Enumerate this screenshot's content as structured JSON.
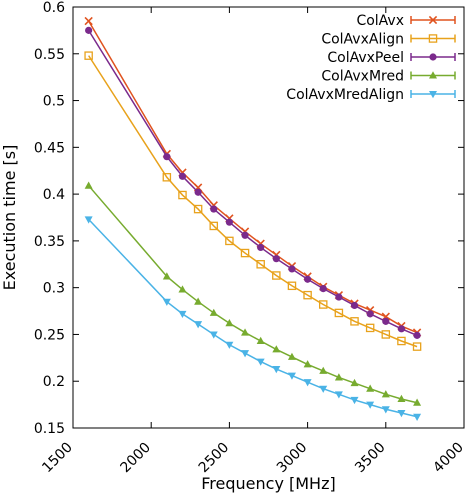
{
  "chart_data": {
    "type": "line",
    "title": "",
    "xlabel": "Frequency [MHz]",
    "ylabel": "Execution time [s]",
    "xlim": [
      1500,
      4000
    ],
    "ylim": [
      0.15,
      0.6
    ],
    "xticks": [
      "1500",
      "2000",
      "2500",
      "3000",
      "3500",
      "4000"
    ],
    "yticks": [
      "0.15",
      "0.2",
      "0.25",
      "0.3",
      "0.35",
      "0.4",
      "0.45",
      "0.5",
      "0.55",
      "0.6"
    ],
    "grid": false,
    "legend_position": "top-right",
    "x": [
      1600,
      2100,
      2200,
      2300,
      2400,
      2500,
      2600,
      2700,
      2800,
      2900,
      3000,
      3100,
      3200,
      3300,
      3400,
      3500,
      3600,
      3700
    ],
    "series": [
      {
        "name": "ColAvx",
        "color": "#e0531f",
        "marker": "cross",
        "values": [
          0.585,
          0.443,
          0.423,
          0.407,
          0.388,
          0.374,
          0.36,
          0.347,
          0.335,
          0.323,
          0.312,
          0.301,
          0.292,
          0.283,
          0.276,
          0.269,
          0.259,
          0.252
        ]
      },
      {
        "name": "ColAvxAlign",
        "color": "#e8a21c",
        "marker": "square",
        "values": [
          0.548,
          0.418,
          0.399,
          0.384,
          0.366,
          0.35,
          0.337,
          0.325,
          0.313,
          0.302,
          0.292,
          0.282,
          0.273,
          0.264,
          0.257,
          0.25,
          0.243,
          0.237
        ]
      },
      {
        "name": "ColAvxPeel",
        "color": "#7b2a8c",
        "marker": "circle",
        "values": [
          0.575,
          0.44,
          0.419,
          0.402,
          0.384,
          0.37,
          0.356,
          0.343,
          0.331,
          0.32,
          0.309,
          0.299,
          0.29,
          0.281,
          0.272,
          0.264,
          0.256,
          0.249
        ]
      },
      {
        "name": "ColAvxMred",
        "color": "#77ab2f",
        "marker": "triangle-up",
        "values": [
          0.409,
          0.312,
          0.298,
          0.285,
          0.273,
          0.262,
          0.252,
          0.243,
          0.234,
          0.226,
          0.218,
          0.211,
          0.204,
          0.198,
          0.192,
          0.186,
          0.181,
          0.177
        ]
      },
      {
        "name": "ColAvxMredAlign",
        "color": "#4ab3e6",
        "marker": "triangle-down",
        "values": [
          0.373,
          0.285,
          0.272,
          0.261,
          0.25,
          0.239,
          0.23,
          0.221,
          0.213,
          0.206,
          0.199,
          0.192,
          0.186,
          0.18,
          0.175,
          0.17,
          0.166,
          0.162
        ]
      }
    ]
  }
}
